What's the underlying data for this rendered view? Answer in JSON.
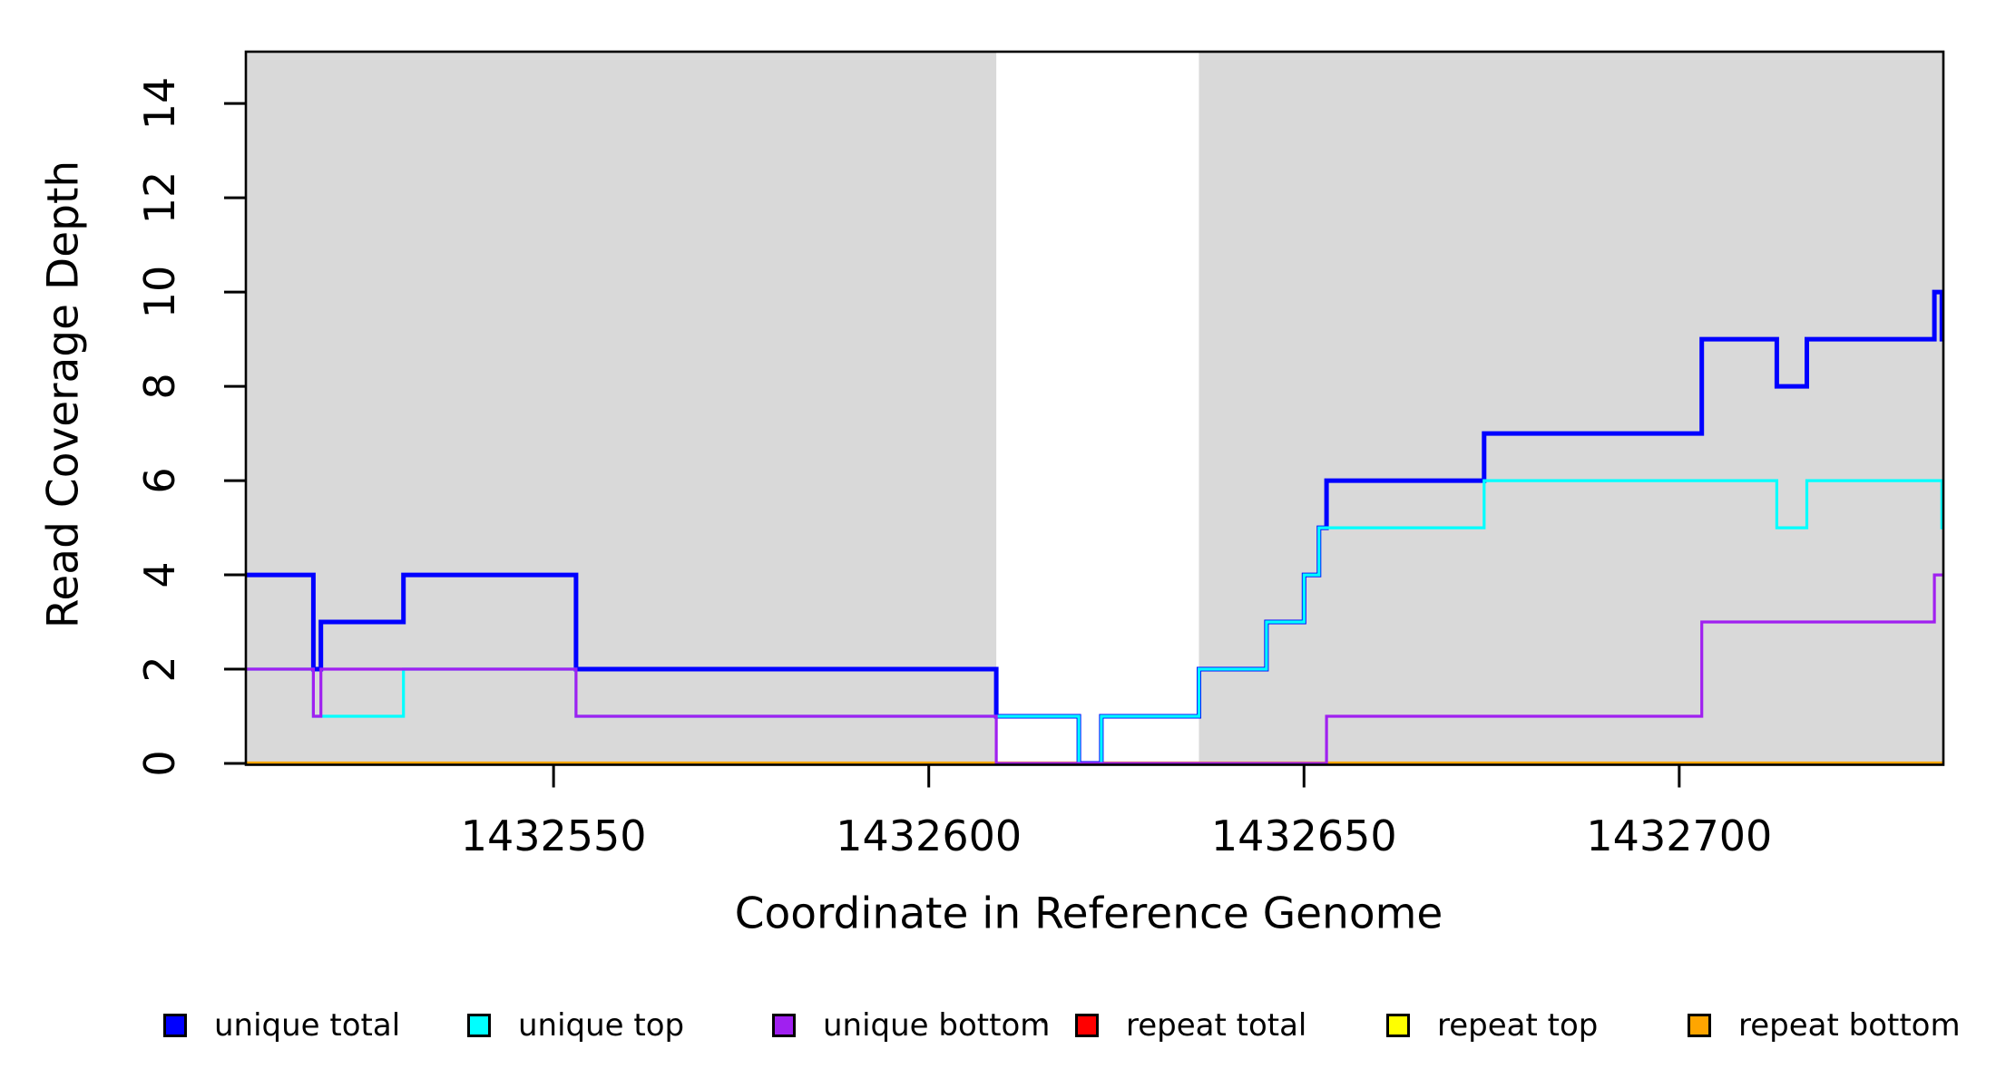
{
  "chart_data": {
    "type": "line",
    "subtype": "step-coverage",
    "title": "",
    "xlabel": "Coordinate in Reference Genome",
    "ylabel": "Read Coverage Depth",
    "xlim": [
      1432509,
      1432735.2
    ],
    "ylim": [
      0,
      15.1
    ],
    "x_ticks": [
      1432550,
      1432600,
      1432650,
      1432700
    ],
    "x_tick_labels": [
      "1432550",
      "1432600",
      "1432650",
      "1432700"
    ],
    "y_ticks": [
      0,
      2,
      4,
      6,
      8,
      10,
      12,
      14
    ],
    "y_tick_labels": [
      "0",
      "2",
      "4",
      "6",
      "8",
      "10",
      "12",
      "14"
    ],
    "grid": false,
    "legend_position": "bottom",
    "shaded_band_color": "#d9d9d9",
    "shaded_bands": [
      {
        "from": 1432509,
        "to": 1432609
      },
      {
        "from": 1432636,
        "to": 1432735.2
      }
    ],
    "gap_region": {
      "from": 1432609,
      "to": 1432636
    },
    "x_end": 1432735.2,
    "series": [
      {
        "name": "unique total",
        "color": "#0000ff",
        "points": [
          [
            1432509,
            4
          ],
          [
            1432518,
            2
          ],
          [
            1432519,
            3
          ],
          [
            1432530,
            4
          ],
          [
            1432553,
            2
          ],
          [
            1432609,
            1
          ],
          [
            1432620,
            0
          ],
          [
            1432623,
            1
          ],
          [
            1432636,
            2
          ],
          [
            1432645,
            3
          ],
          [
            1432650,
            4
          ],
          [
            1432652,
            5
          ],
          [
            1432653,
            6
          ],
          [
            1432674,
            7
          ],
          [
            1432703,
            9
          ],
          [
            1432713,
            8
          ],
          [
            1432717,
            9
          ],
          [
            1432734,
            10
          ],
          [
            1432735,
            9
          ]
        ]
      },
      {
        "name": "unique top",
        "color": "#00ffff",
        "points": [
          [
            1432509,
            2
          ],
          [
            1432518,
            1
          ],
          [
            1432530,
            2
          ],
          [
            1432553,
            1
          ],
          [
            1432620,
            0
          ],
          [
            1432623,
            1
          ],
          [
            1432636,
            2
          ],
          [
            1432645,
            3
          ],
          [
            1432650,
            4
          ],
          [
            1432652,
            5
          ],
          [
            1432674,
            6
          ],
          [
            1432713,
            5
          ],
          [
            1432717,
            6
          ],
          [
            1432735,
            5
          ]
        ]
      },
      {
        "name": "unique bottom",
        "color": "#a020f0",
        "points": [
          [
            1432509,
            2
          ],
          [
            1432518,
            1
          ],
          [
            1432519,
            2
          ],
          [
            1432553,
            1
          ],
          [
            1432609,
            0
          ],
          [
            1432653,
            1
          ],
          [
            1432703,
            3
          ],
          [
            1432734,
            4
          ]
        ]
      },
      {
        "name": "repeat total",
        "color": "#ff0000",
        "points": [
          [
            1432509,
            0
          ]
        ]
      },
      {
        "name": "repeat top",
        "color": "#ffff00",
        "points": [
          [
            1432509,
            0
          ]
        ]
      },
      {
        "name": "repeat bottom",
        "color": "#ffa500",
        "points": [
          [
            1432509,
            0
          ]
        ]
      }
    ],
    "legend": [
      {
        "label": "unique total",
        "color": "#0000ff",
        "x": 180
      },
      {
        "label": "unique top",
        "color": "#00ffff",
        "x": 515
      },
      {
        "label": "unique bottom",
        "color": "#a020f0",
        "x": 851
      },
      {
        "label": "repeat total",
        "color": "#ff0000",
        "x": 1185
      },
      {
        "label": "repeat top",
        "color": "#ffff00",
        "x": 1528
      },
      {
        "label": "repeat bottom",
        "color": "#ffa500",
        "x": 1860
      }
    ]
  }
}
